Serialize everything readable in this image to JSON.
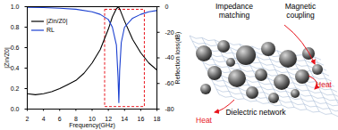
{
  "chart_data": {
    "type": "line",
    "x_label": "Frequency(GHz)",
    "y_label": "|Zin/Z0|",
    "y2_label": "Reflection loss(dB)",
    "xlim": [
      2,
      18
    ],
    "xticks": [
      2,
      4,
      6,
      8,
      10,
      12,
      14,
      16,
      18
    ],
    "ylim": [
      0,
      1
    ],
    "yticks": [
      {
        "value": 0,
        "label": "0.0"
      },
      {
        "value": 0.2,
        "label": "0.2"
      },
      {
        "value": 0.4,
        "label": "0.4"
      },
      {
        "value": 0.6,
        "label": "0.6"
      },
      {
        "value": 0.8,
        "label": "0.8"
      },
      {
        "value": 1,
        "label": "1.0"
      }
    ],
    "y2lim": [
      -80,
      0
    ],
    "y2ticks": [
      0,
      -20,
      -40,
      -60,
      -80
    ],
    "legend": "top-left",
    "series": [
      {
        "name": "|Zin/Z0|",
        "color": "#000000",
        "x": [
          2,
          3,
          4,
          5,
          6,
          7,
          8,
          9,
          10,
          11,
          12,
          12.5,
          13,
          13.25,
          13.5,
          14,
          15,
          16,
          17,
          18
        ],
        "values": [
          0.15,
          0.14,
          0.15,
          0.17,
          0.2,
          0.24,
          0.28,
          0.35,
          0.45,
          0.58,
          0.78,
          0.9,
          0.98,
          1.0,
          0.96,
          0.86,
          0.68,
          0.55,
          0.45,
          0.38
        ]
      },
      {
        "name": "RL",
        "color": "#1a3fd0",
        "axis": "y2",
        "x": [
          2,
          4,
          6,
          8,
          10,
          11,
          12,
          12.5,
          13,
          13.2,
          13.3,
          13.4,
          13.6,
          14,
          15,
          16,
          17,
          18
        ],
        "values": [
          -0.5,
          -0.7,
          -1.2,
          -2,
          -4,
          -6,
          -10,
          -16,
          -30,
          -55,
          -75,
          -50,
          -28,
          -16,
          -9,
          -6,
          -4,
          -3
        ]
      }
    ],
    "annotations": [
      {
        "type": "rect",
        "x": [
          11.6,
          16.5
        ],
        "y": [
          0.02,
          0.97
        ],
        "color": "#e8141c",
        "line_style": "dashed"
      }
    ]
  },
  "illustration": {
    "labels": [
      {
        "lines": [
          "Impedance",
          "matching"
        ]
      },
      {
        "lines": [
          "Magnetic",
          "coupling"
        ]
      },
      {
        "lines": [
          "Heat"
        ]
      },
      {
        "lines": [
          "Dielectric network"
        ]
      },
      {
        "lines": [
          "Heat"
        ]
      }
    ]
  }
}
